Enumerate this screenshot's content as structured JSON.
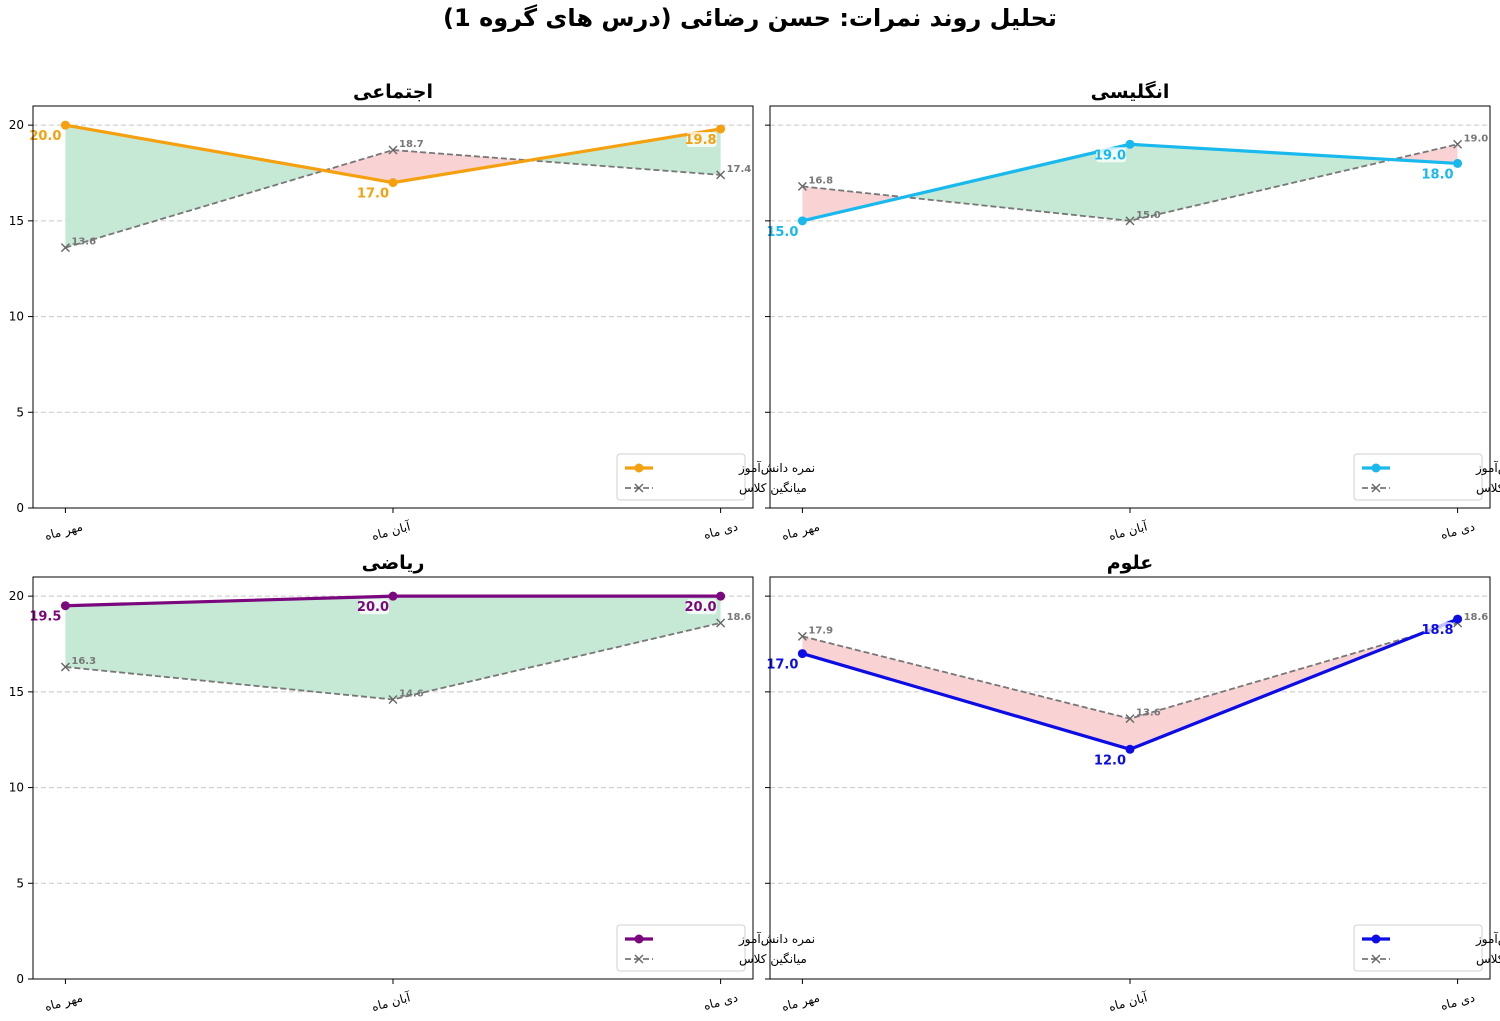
{
  "figure": {
    "title": "تحلیل روند نمرات: حسن رضائی (درس های گروه 1)"
  },
  "legend": {
    "student_label": "نمره دانش‌آموز",
    "class_label": "میانگین کلاس"
  },
  "chart_data": [
    {
      "type": "line",
      "title": "اجتماعی",
      "categories": [
        "مهر ماه",
        "آبان ماه",
        "دی ماه"
      ],
      "ylim": [
        0,
        21
      ],
      "yticks": [
        0,
        5,
        10,
        15,
        20
      ],
      "grid": true,
      "legend_position": "lower-right",
      "color": "#f5a00f",
      "series": [
        {
          "name": "نمره دانش‌آموز",
          "values": [
            20.0,
            17.0,
            19.8
          ]
        },
        {
          "name": "میانگین کلاس",
          "values": [
            13.6,
            18.7,
            17.4
          ]
        }
      ],
      "fill_above": "#c6e9d6",
      "fill_below": "#f9d3d4"
    },
    {
      "type": "line",
      "title": "انگلیسی",
      "categories": [
        "مهر ماه",
        "آبان ماه",
        "دی ماه"
      ],
      "ylim": [
        0,
        21
      ],
      "yticks": [
        0,
        5,
        10,
        15,
        20
      ],
      "grid": true,
      "legend_position": "lower-right",
      "color": "#19b9ee",
      "series": [
        {
          "name": "نمره دانش‌آموز",
          "values": [
            15.0,
            19.0,
            18.0
          ]
        },
        {
          "name": "میانگین کلاس",
          "values": [
            16.8,
            15.0,
            19.0
          ]
        }
      ],
      "fill_above": "#c6e9d6",
      "fill_below": "#f9d3d4"
    },
    {
      "type": "line",
      "title": "ریاضی",
      "categories": [
        "مهر ماه",
        "آبان ماه",
        "دی ماه"
      ],
      "ylim": [
        0,
        21
      ],
      "yticks": [
        0,
        5,
        10,
        15,
        20
      ],
      "grid": true,
      "legend_position": "lower-right",
      "color": "#7a077d",
      "series": [
        {
          "name": "نمره دانش‌آموز",
          "values": [
            19.5,
            20.0,
            20.0
          ]
        },
        {
          "name": "میانگین کلاس",
          "values": [
            16.3,
            14.6,
            18.6
          ]
        }
      ],
      "fill_above": "#c6e9d6",
      "fill_below": "#f9d3d4"
    },
    {
      "type": "line",
      "title": "علوم",
      "categories": [
        "مهر ماه",
        "آبان ماه",
        "دی ماه"
      ],
      "ylim": [
        0,
        21
      ],
      "yticks": [
        0,
        5,
        10,
        15,
        20
      ],
      "grid": true,
      "legend_position": "lower-right",
      "color": "#0c0ce6",
      "series": [
        {
          "name": "نمره دانش‌آموز",
          "values": [
            17.0,
            12.0,
            18.8
          ]
        },
        {
          "name": "میانگین کلاس",
          "values": [
            17.9,
            13.6,
            18.6
          ]
        }
      ],
      "fill_above": "#c6e9d6",
      "fill_below": "#f9d3d4"
    }
  ]
}
